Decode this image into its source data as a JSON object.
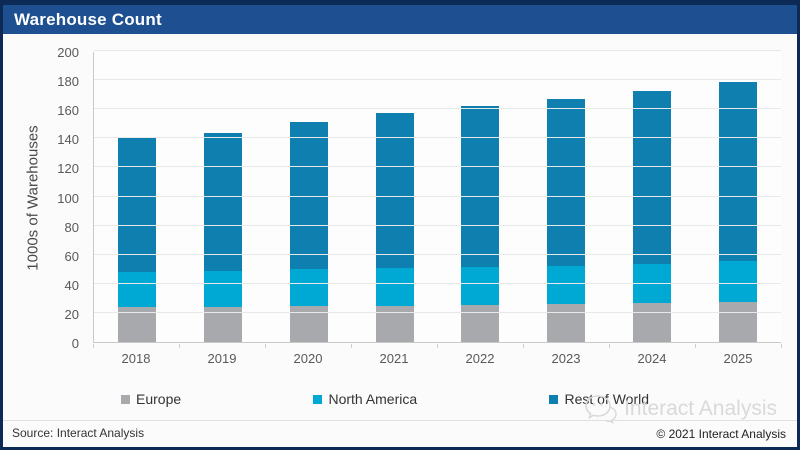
{
  "window": {
    "title": "Warehouse Count"
  },
  "chart_data": {
    "type": "bar",
    "stacked": true,
    "title": "Warehouse Count",
    "categories": [
      "2018",
      "2019",
      "2020",
      "2021",
      "2022",
      "2023",
      "2024",
      "2025"
    ],
    "series": [
      {
        "name": "Europe",
        "color": "#a7a9ac",
        "values": [
          24,
          24,
          24.5,
          25,
          25.5,
          26,
          26.5,
          27.5
        ]
      },
      {
        "name": "North America",
        "color": "#00a9d3",
        "values": [
          24,
          24.5,
          25.5,
          26,
          26,
          26.5,
          27,
          28
        ]
      },
      {
        "name": "Rest of World",
        "color": "#0e7fae",
        "values": [
          93,
          95,
          101,
          106.5,
          110.5,
          114.5,
          119,
          123.5
        ]
      }
    ],
    "totals": [
      141,
      143.5,
      151,
      157.5,
      162,
      167,
      172.5,
      179
    ],
    "xlabel": "",
    "ylabel": "1000s of Warehouses",
    "ylim": [
      0,
      200
    ],
    "ytick_step": 20,
    "grid": true,
    "legend_position": "bottom"
  },
  "footer": {
    "source": "Source: Interact Analysis",
    "copyright": "© 2021 Interact Analysis"
  },
  "watermark": {
    "text": "Interact Analysis",
    "icon": "chat-bubble-face-icon"
  },
  "colors": {
    "title_bar": "#1d4f91",
    "outer_border": "#0d2a56",
    "gridline": "#e8e8e8",
    "axis_text": "#595959",
    "watermark": "#d9d9d9"
  }
}
